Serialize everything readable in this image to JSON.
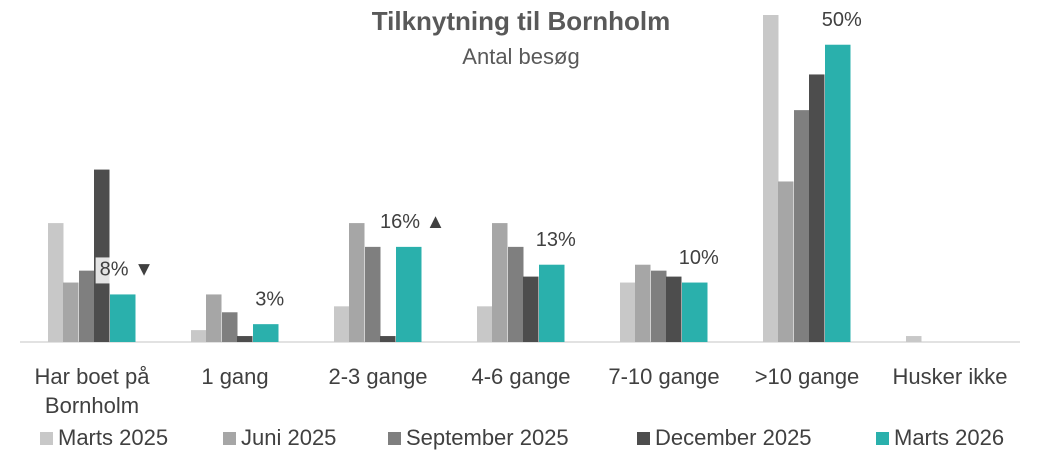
{
  "chart_data": {
    "type": "bar",
    "title": "Tilknytning til Bornholm",
    "subtitle": "Antal besøg",
    "categories": [
      "Har boet på Bornholm",
      "1 gang",
      "2-3 gange",
      "4-6 gange",
      "7-10 gange",
      ">10 gange",
      "Husker ikke"
    ],
    "series": [
      {
        "name": "Marts 2025",
        "color": "#c8c8c8",
        "values": [
          20,
          2,
          6,
          6,
          10,
          55,
          1
        ]
      },
      {
        "name": "Juni 2025",
        "color": "#a6a6a6",
        "values": [
          10,
          8,
          20,
          20,
          13,
          27,
          0
        ]
      },
      {
        "name": "September 2025",
        "color": "#7f7f7f",
        "values": [
          12,
          5,
          16,
          16,
          12,
          39,
          0
        ]
      },
      {
        "name": "December 2025",
        "color": "#4d4d4d",
        "values": [
          29,
          1,
          1,
          11,
          11,
          45,
          0
        ]
      },
      {
        "name": "Marts 2026",
        "color": "#2ab0ac",
        "values": [
          8,
          3,
          16,
          13,
          10,
          50,
          0
        ],
        "value_labels": [
          "8% ▼",
          "3%",
          "16% ▲",
          "13%",
          "10%",
          "50%",
          null
        ]
      }
    ],
    "ylim": [
      0,
      55
    ],
    "legend": "bottom"
  }
}
